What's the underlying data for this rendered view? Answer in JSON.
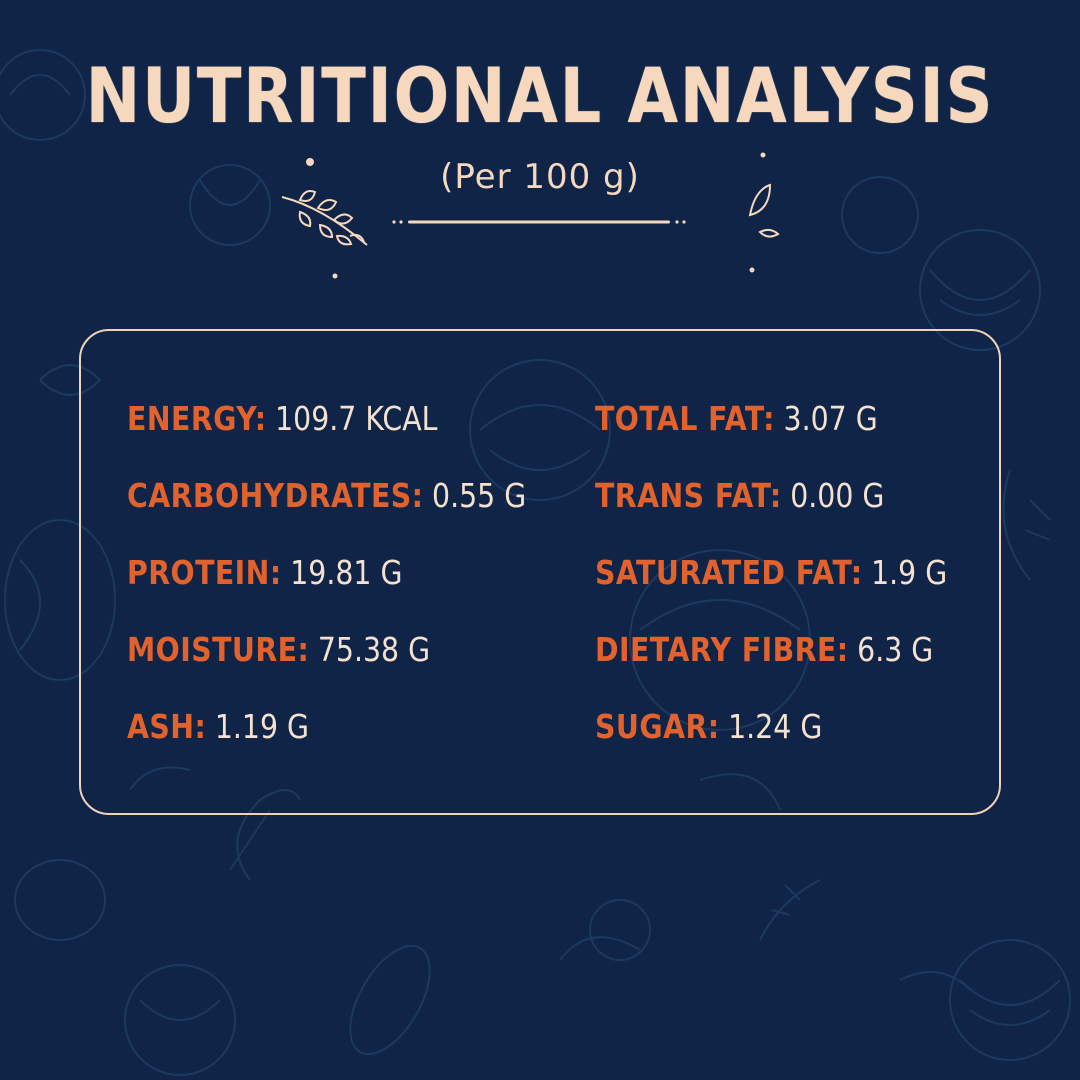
{
  "title": "NUTRITIONAL ANALYSIS",
  "subtitle": "(Per 100 g)",
  "colors": {
    "background": "#0f2447",
    "title": "#f5d8bd",
    "label": "#e2622d",
    "value": "#f5e1cf",
    "border": "#f0d2b6"
  },
  "nutrients_left": [
    {
      "label": "ENERGY:",
      "value": "109.7 KCAL"
    },
    {
      "label": "CARBOHYDRATES:",
      "value": "0.55 G"
    },
    {
      "label": "PROTEIN:",
      "value": "19.81 G"
    },
    {
      "label": "MOISTURE:",
      "value": "75.38 G"
    },
    {
      "label": "ASH:",
      "value": "1.19 G"
    }
  ],
  "nutrients_right": [
    {
      "label": "TOTAL FAT:",
      "value": "3.07 G"
    },
    {
      "label": "TRANS FAT:",
      "value": "0.00 G"
    },
    {
      "label": "SATURATED FAT:",
      "value": "1.9 G"
    },
    {
      "label": "DIETARY FIBRE:",
      "value": "6.3 G"
    },
    {
      "label": "SUGAR:",
      "value": "1.24 G"
    }
  ],
  "icons": [
    "leaf-sprig-icon",
    "leaves-icon",
    "divider-line-icon"
  ]
}
